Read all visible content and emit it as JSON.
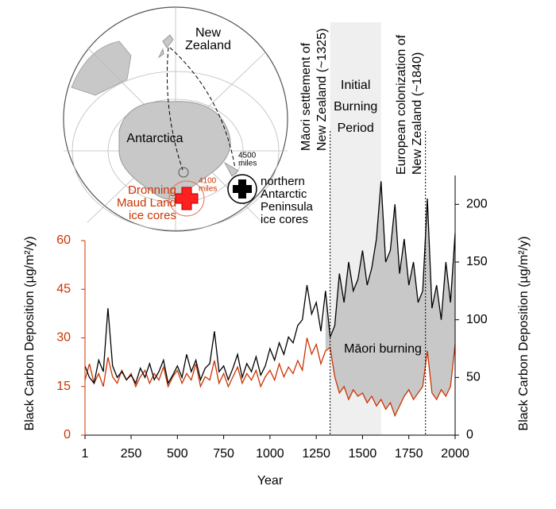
{
  "chart_data": {
    "type": "line",
    "x_label": "Year",
    "y_label": "Black Carbon Deposition (µg/m²/y)",
    "y2_label": "Black Carbon Deposition (µg/m²/y)",
    "xlim": [
      1,
      2000
    ],
    "xticks": [
      1,
      250,
      500,
      750,
      1000,
      1250,
      1500,
      1750,
      2000
    ],
    "ylim": [
      0,
      60
    ],
    "yticks": [
      0,
      15,
      30,
      45,
      60
    ],
    "y2lim": [
      0,
      225
    ],
    "y2ticks": [
      0,
      50,
      100,
      150,
      200
    ],
    "x": [
      1,
      25,
      50,
      75,
      100,
      125,
      150,
      175,
      200,
      225,
      250,
      275,
      300,
      325,
      350,
      375,
      400,
      425,
      450,
      475,
      500,
      525,
      550,
      575,
      600,
      625,
      650,
      675,
      700,
      725,
      750,
      775,
      800,
      825,
      850,
      875,
      900,
      925,
      950,
      975,
      1000,
      1025,
      1050,
      1075,
      1100,
      1125,
      1150,
      1175,
      1200,
      1225,
      1250,
      1275,
      1300,
      1325,
      1350,
      1375,
      1400,
      1425,
      1450,
      1475,
      1500,
      1525,
      1550,
      1575,
      1600,
      1625,
      1650,
      1675,
      1700,
      1725,
      1750,
      1775,
      1800,
      1825,
      1850,
      1875,
      1900,
      1925,
      1950,
      1975,
      2000
    ],
    "series": [
      {
        "name": "Dronning Maud Land ice cores",
        "color": "#cc3300",
        "axis": "y",
        "values": [
          17,
          22,
          16,
          19,
          15,
          24,
          18,
          16,
          20,
          17,
          19,
          15,
          18,
          20,
          16,
          19,
          17,
          21,
          15,
          18,
          20,
          16,
          19,
          17,
          22,
          15,
          18,
          17,
          23,
          16,
          19,
          15,
          18,
          21,
          16,
          19,
          17,
          20,
          15,
          18,
          20,
          17,
          22,
          18,
          21,
          19,
          23,
          20,
          30,
          25,
          28,
          22,
          26,
          27,
          18,
          13,
          15,
          11,
          14,
          12,
          13,
          10,
          12,
          9,
          11,
          8,
          10,
          6,
          9,
          12,
          14,
          11,
          13,
          15,
          26,
          13,
          11,
          14,
          12,
          15,
          28
        ]
      },
      {
        "name": "northern Antarctic Peninsula ice cores",
        "color": "#000000",
        "axis": "y2",
        "values": [
          60,
          50,
          45,
          65,
          55,
          110,
          60,
          50,
          55,
          48,
          52,
          45,
          58,
          50,
          62,
          48,
          55,
          65,
          45,
          52,
          60,
          50,
          70,
          55,
          65,
          48,
          58,
          62,
          90,
          55,
          60,
          48,
          58,
          70,
          50,
          62,
          55,
          68,
          52,
          60,
          75,
          65,
          80,
          70,
          85,
          80,
          95,
          100,
          130,
          105,
          115,
          90,
          125,
          85,
          95,
          140,
          115,
          150,
          125,
          135,
          160,
          130,
          145,
          170,
          220,
          150,
          160,
          200,
          140,
          170,
          130,
          150,
          115,
          125,
          205,
          110,
          130,
          100,
          150,
          115,
          175
        ]
      }
    ],
    "shaded_region": [
      1325,
      1600
    ],
    "shaded_label": [
      "Initial",
      "Burning",
      "Period"
    ],
    "event_lines": [
      {
        "x": 1325,
        "label": [
          "Māori settlement of",
          "New Zealand (~1325)"
        ]
      },
      {
        "x": 1840,
        "label": [
          "European colonization of",
          "New Zealand (~1840)"
        ]
      }
    ],
    "fill_label": "Māori burning",
    "map": {
      "new_zealand": [
        "New",
        "Zealand"
      ],
      "antarctica": "Antarctica",
      "distance_dml": [
        "4100",
        "miles"
      ],
      "distance_nap": [
        "4500",
        "miles"
      ]
    }
  }
}
